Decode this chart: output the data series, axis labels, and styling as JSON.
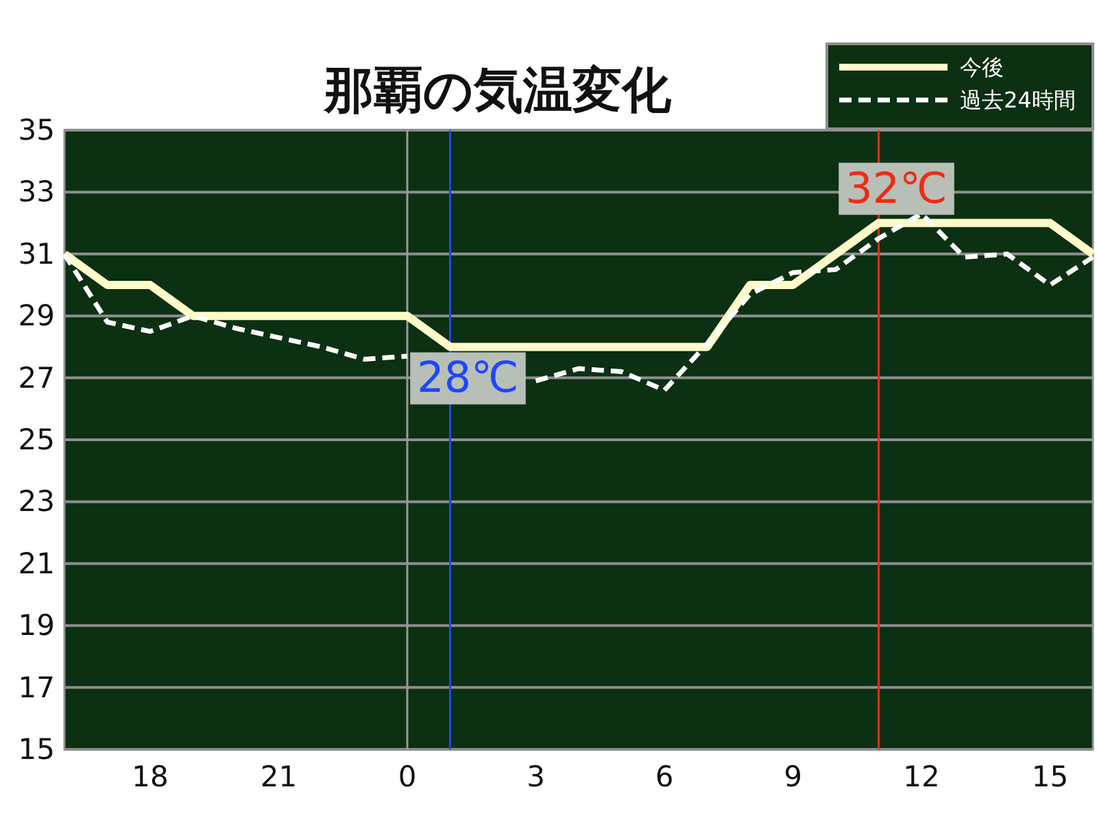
{
  "chart_data": {
    "type": "line",
    "title": "那覇の気温変化",
    "x": [
      "--01-01T16:00",
      "--01-01T17:00",
      "--01-01T18:00",
      "--01-01T19:00",
      "--01-01T20:00",
      "--01-01T21:00",
      "--01-01T22:00",
      "--01-01T23:00",
      "--01-02T00:00",
      "--01-02T01:00",
      "--01-02T02:00",
      "--01-02T03:00",
      "--01-02T04:00",
      "--01-02T05:00",
      "--01-02T06:00",
      "--01-02T07:00",
      "--01-02T08:00",
      "--01-02T09:00",
      "--01-02T10:00",
      "--01-02T11:00",
      "--01-02T12:00",
      "--01-02T13:00",
      "--01-02T14:00",
      "--01-02T15:00",
      "--01-02T16:00"
    ],
    "xlim": [
      "--01-01T16:00",
      "--01-02T16:00"
    ],
    "xticks": [
      {
        "value": "--01-01T18:00",
        "label": "18"
      },
      {
        "value": "--01-01T21:00",
        "label": "21"
      },
      {
        "value": "--01-02T00:00",
        "label": "0"
      },
      {
        "value": "--01-02T03:00",
        "label": "3"
      },
      {
        "value": "--01-02T06:00",
        "label": "6"
      },
      {
        "value": "--01-02T09:00",
        "label": "9"
      },
      {
        "value": "--01-02T12:00",
        "label": "12"
      },
      {
        "value": "--01-02T15:00",
        "label": "15"
      }
    ],
    "ylim": [
      15,
      35
    ],
    "yticks": [
      15,
      17,
      19,
      21,
      23,
      25,
      27,
      29,
      31,
      33,
      35
    ],
    "grid": "y",
    "legend": "top right",
    "series": [
      {
        "name": "今後",
        "color": "#fffac8",
        "line_style": "solid",
        "values": [
          31,
          30,
          30,
          29,
          29,
          29,
          29,
          29,
          29,
          28,
          28,
          28,
          28,
          28,
          28,
          28,
          30,
          30,
          31,
          32,
          32,
          32,
          32,
          32,
          31
        ]
      },
      {
        "name": "過去24時間",
        "color": "#ffffff",
        "line_style": "dashed",
        "values": [
          31,
          28.8,
          28.5,
          29.0,
          28.6,
          28.3,
          28.0,
          27.6,
          27.7,
          null,
          null,
          26.9,
          27.3,
          27.2,
          26.6,
          28.1,
          29.7,
          30.4,
          30.5,
          31.5,
          32.3,
          30.9,
          31.0,
          30.0,
          30.9
        ]
      }
    ],
    "ref_lines": [
      {
        "axis": "x",
        "value": "--01-02T00:00",
        "color": "#9a9a9a"
      },
      {
        "axis": "x",
        "value": "--01-02T01:00",
        "label": "28℃",
        "color": "#1e46ff"
      },
      {
        "axis": "x",
        "value": "--01-02T11:00",
        "label": "32℃",
        "color": "#f02a14"
      }
    ]
  }
}
